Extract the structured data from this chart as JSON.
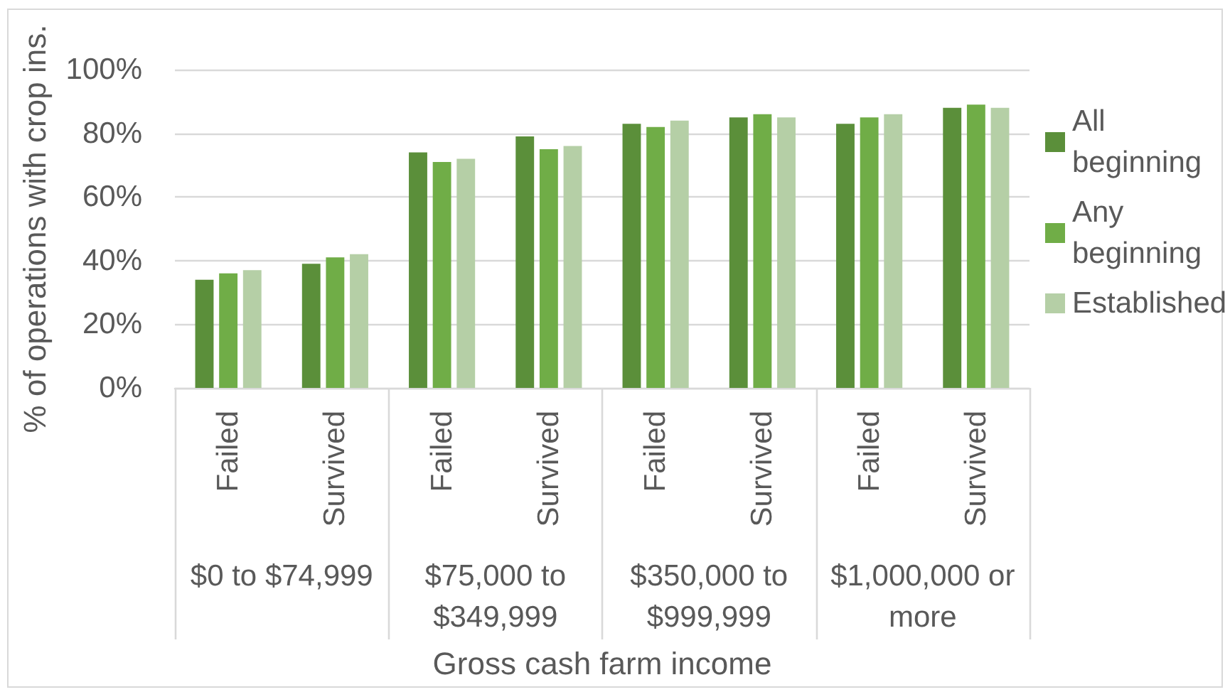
{
  "chart_data": {
    "type": "bar",
    "ylabel": "% of operations with crop ins.",
    "xlabel": "Gross cash farm income",
    "categories": [
      "Failed",
      "Survived",
      "Failed",
      "Survived",
      "Failed",
      "Survived",
      "Failed",
      "Survived"
    ],
    "annotations": [
      "$0 to $74,999",
      "$75,000 to $349,999",
      "$350,000 to $999,999",
      "$1,000,000 or more"
    ],
    "series": [
      {
        "name": "All beginning",
        "color": "#5b8f3a",
        "values": [
          34,
          39,
          74,
          79,
          83,
          85,
          83,
          88
        ]
      },
      {
        "name": "Any beginning",
        "color": "#70ad47",
        "values": [
          36,
          41,
          71,
          75,
          82,
          86,
          85,
          89
        ]
      },
      {
        "name": "Established",
        "color": "#b5cfa6",
        "values": [
          37,
          42,
          72,
          76,
          84,
          85,
          86,
          88
        ]
      }
    ],
    "ylim": [
      0,
      100
    ],
    "yticks": [
      {
        "value": 0,
        "label": "0%"
      },
      {
        "value": 20,
        "label": "20%"
      },
      {
        "value": 40,
        "label": "40%"
      },
      {
        "value": 60,
        "label": "60%"
      },
      {
        "value": 80,
        "label": "80%"
      },
      {
        "value": 100,
        "label": "100%"
      }
    ],
    "grid": "y",
    "legend": "right"
  }
}
